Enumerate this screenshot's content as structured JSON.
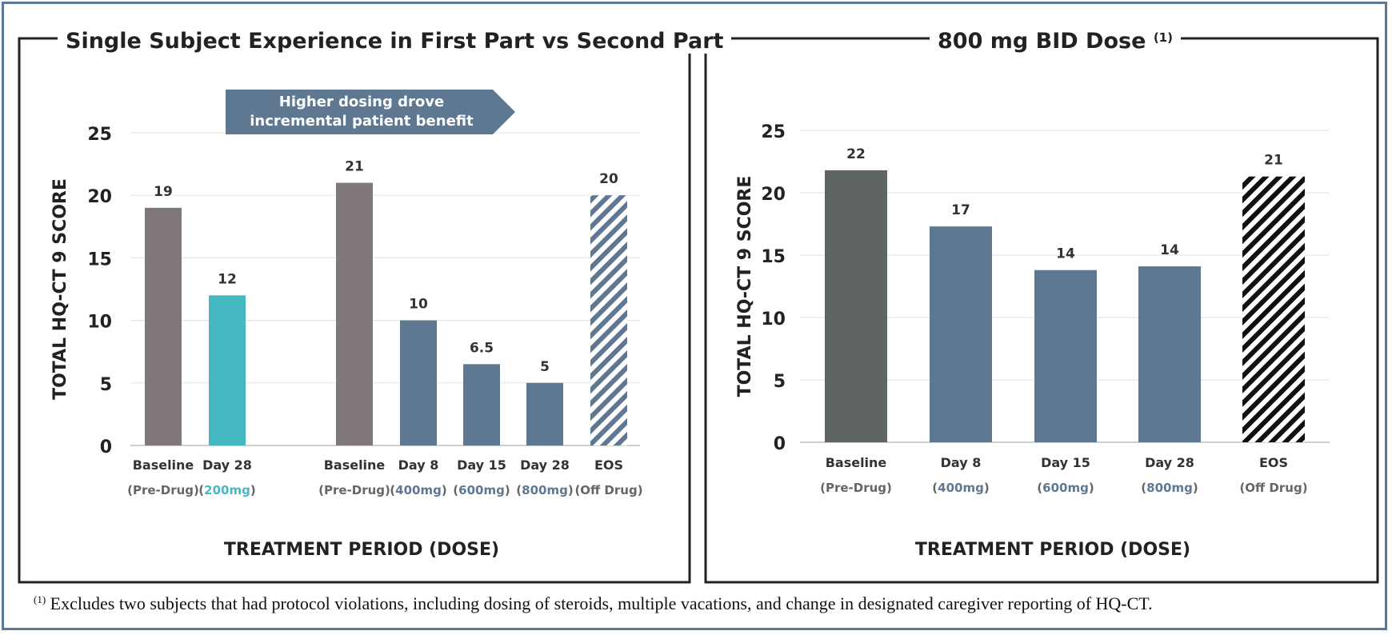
{
  "chart_data": [
    {
      "type": "bar",
      "title": "Single Subject Experience in First Part vs Second Part",
      "title_sup": "",
      "xlabel": "TREATMENT PERIOD (DOSE)",
      "ylabel": "TOTAL HQ-CT 9 SCORE",
      "ylim": [
        0,
        25
      ],
      "yticks": [
        "0",
        "5",
        "10",
        "15",
        "20",
        "25"
      ],
      "grid": true,
      "callout": "Higher dosing drove incremental patient benefit",
      "callout_lines": [
        "Higher dosing drove",
        "incremental patient benefit"
      ],
      "categories": [
        "Baseline",
        "Day 28",
        "Baseline",
        "Day 8",
        "Day 15",
        "Day 28",
        "EOS"
      ],
      "category_sub": [
        "(Pre-Drug)",
        "(200mg)",
        "(Pre-Drug)",
        "(400mg)",
        "(600mg)",
        "(800mg)",
        "(Off Drug)"
      ],
      "values": [
        19,
        12,
        21,
        10,
        6.5,
        5,
        20
      ],
      "value_labels": [
        "19",
        "12",
        "21",
        "10",
        "6.5",
        "5",
        "20"
      ],
      "colors": [
        "#807878",
        "#46b8c2",
        "#807878",
        "#5f7892",
        "#5f7892",
        "#5f7892",
        "#5f7892"
      ],
      "sub_colors": [
        "#666666",
        "#46b8c2",
        "#666666",
        "#5f7892",
        "#5f7892",
        "#5f7892",
        "#666666"
      ],
      "hatched": [
        false,
        false,
        false,
        false,
        false,
        false,
        true
      ]
    },
    {
      "type": "bar",
      "title": "800 mg BID Dose",
      "title_sup": "(1)",
      "xlabel": "TREATMENT PERIOD (DOSE)",
      "ylabel": "TOTAL HQ-CT 9 SCORE",
      "ylim": [
        0,
        25
      ],
      "yticks": [
        "0",
        "5",
        "10",
        "15",
        "20",
        "25"
      ],
      "grid": true,
      "categories": [
        "Baseline",
        "Day 8",
        "Day 15",
        "Day 28",
        "EOS"
      ],
      "category_sub": [
        "(Pre-Drug)",
        "(400mg)",
        "(600mg)",
        "(800mg)",
        "(Off Drug)"
      ],
      "values": [
        21.8,
        17.3,
        13.8,
        14.1,
        21.3
      ],
      "value_labels": [
        "22",
        "17",
        "14",
        "14",
        "21"
      ],
      "colors": [
        "#5f6563",
        "#5f7892",
        "#5f7892",
        "#5f7892",
        "#111111"
      ],
      "sub_colors": [
        "#666666",
        "#5f7892",
        "#5f7892",
        "#5f7892",
        "#666666"
      ],
      "hatched": [
        false,
        false,
        false,
        false,
        true
      ]
    }
  ],
  "footnote": {
    "marker": "(1)",
    "text": " Excludes two subjects that had protocol violations, including dosing of steroids, multiple vacations, and change in designated caregiver reporting of HQ-CT."
  }
}
